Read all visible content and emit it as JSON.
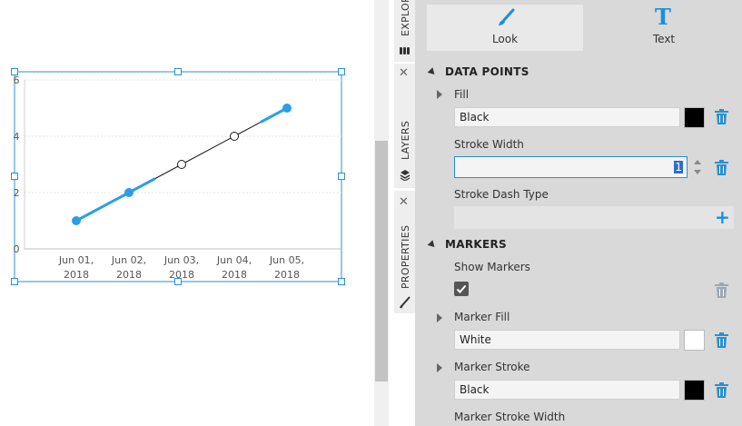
{
  "chart_data": {
    "type": "line",
    "categories": [
      "Jun 01,\n2018",
      "Jun 02,\n2018",
      "Jun 03,\n2018",
      "Jun 04,\n2018",
      "Jun 05,\n2018"
    ],
    "category_lines": [
      [
        "Jun 01,",
        "2018"
      ],
      [
        "Jun 02,",
        "2018"
      ],
      [
        "Jun 03,",
        "2018"
      ],
      [
        "Jun 04,",
        "2018"
      ],
      [
        "Jun 05,",
        "2018"
      ]
    ],
    "values": [
      1,
      2,
      3,
      4,
      5
    ],
    "highlighted_points": [
      true,
      true,
      false,
      false,
      true
    ],
    "ylim": [
      0,
      6
    ],
    "y_ticks": [
      "0",
      "2",
      "4",
      "6"
    ],
    "title": "",
    "xlabel": "",
    "ylabel": "",
    "grid": true,
    "line_color": "#1a1a1a",
    "highlight_color": "#2b9fe6",
    "marker_fill": "#ffffff"
  },
  "side_tabs": {
    "explore": "EXPLORE",
    "layers": "LAYERS",
    "properties": "PROPERTIES"
  },
  "panel_tabs": {
    "look": "Look",
    "text": "Text"
  },
  "sections": {
    "data_points": "DATA POINTS",
    "markers": "MARKERS"
  },
  "properties": {
    "fill_label": "Fill",
    "fill_value": "Black",
    "fill_color": "#000000",
    "stroke_width_label": "Stroke Width",
    "stroke_width_value": "1",
    "stroke_dash_label": "Stroke Dash Type",
    "show_markers_label": "Show Markers",
    "show_markers_checked": true,
    "marker_fill_label": "Marker Fill",
    "marker_fill_value": "White",
    "marker_fill_color": "#ffffff",
    "marker_stroke_label": "Marker Stroke",
    "marker_stroke_value": "Black",
    "marker_stroke_color": "#000000",
    "marker_stroke_width_label": "Marker Stroke Width"
  },
  "colors": {
    "accent": "#1a8fe0",
    "panel_bg": "#d9d9d9"
  }
}
